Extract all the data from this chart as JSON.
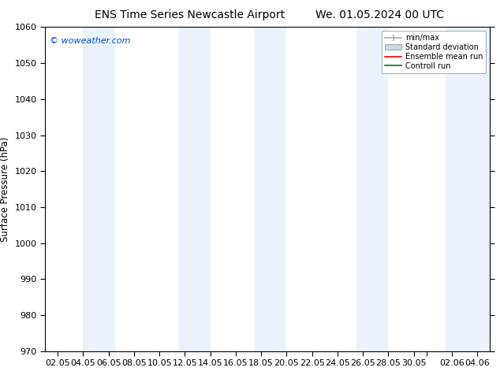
{
  "title": "ENS Time Series Newcastle Airport",
  "title2": "We. 01.05.2024 00 UTC",
  "ylabel": "Surface Pressure (hPa)",
  "ylim": [
    970,
    1060
  ],
  "yticks": [
    970,
    980,
    990,
    1000,
    1010,
    1020,
    1030,
    1040,
    1050,
    1060
  ],
  "xtick_labels": [
    "02.05",
    "04.05",
    "06.05",
    "08.05",
    "10.05",
    "12.05",
    "14.05",
    "16.05",
    "18.05",
    "20.05",
    "22.05",
    "24.05",
    "26.05",
    "28.05",
    "30.05",
    "",
    "02.06",
    "04.06"
  ],
  "num_xticks": 18,
  "watermark": "© woweather.com",
  "legend_entries": [
    "min/max",
    "Standard deviation",
    "Ensemble mean run",
    "Controll run"
  ],
  "legend_colors": [
    "#aaaaaa",
    "#c8d8e8",
    "#ff0000",
    "#008000"
  ],
  "band_color": "#daeaf8",
  "band_alpha": 0.55,
  "bg_color": "#ffffff",
  "title_fontsize": 10,
  "axis_fontsize": 8.5,
  "tick_fontsize": 8
}
